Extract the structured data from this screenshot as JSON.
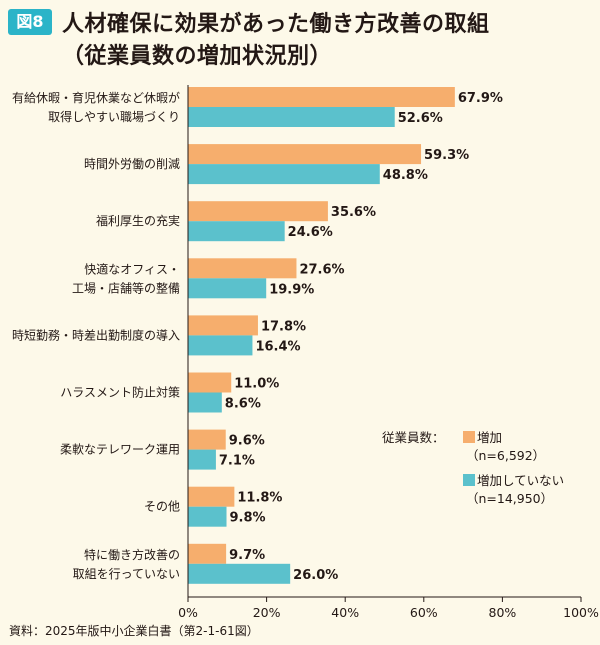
{
  "figure_badge": "図8",
  "title_line1": "人材確保に効果があった働き方改善の取組",
  "title_line2": "（従業員数の増加状況別）",
  "source": "資料：2025年版中小企業白書（第2-1-61図）",
  "legend": {
    "heading": "従業員数：",
    "items": [
      {
        "line1": "増加",
        "line2": "（n=6,592）"
      },
      {
        "line1": "増加していない",
        "line2": "（n=14,950）"
      }
    ]
  },
  "colors": {
    "increase": "#f6ae6d",
    "no_increase": "#5bc1cc",
    "axis": "#231815",
    "background": "#fdf9e9"
  },
  "chart_data": {
    "type": "bar",
    "orientation": "horizontal",
    "categories": [
      [
        "有給休暇・育児休業など休暇が",
        "取得しやすい職場づくり"
      ],
      [
        "時間外労働の削減"
      ],
      [
        "福利厚生の充実"
      ],
      [
        "快適なオフィス・",
        "工場・店舗等の整備"
      ],
      [
        "時短勤務・時差出勤制度の導入"
      ],
      [
        "ハラスメント防止対策"
      ],
      [
        "柔軟なテレワーク運用"
      ],
      [
        "その他"
      ],
      [
        "特に働き方改善の",
        "取組を行っていない"
      ]
    ],
    "series": [
      {
        "name": "増加",
        "values": [
          67.9,
          59.3,
          35.6,
          27.6,
          17.8,
          11.0,
          9.6,
          11.8,
          9.7
        ],
        "labels": [
          "67.9%",
          "59.3%",
          "35.6%",
          "27.6%",
          "17.8%",
          "11.0%",
          "9.6%",
          "11.8%",
          "9.7%"
        ]
      },
      {
        "name": "増加していない",
        "values": [
          52.6,
          48.8,
          24.6,
          19.9,
          16.4,
          8.6,
          7.1,
          9.8,
          26.0
        ],
        "labels": [
          "52.6%",
          "48.8%",
          "24.6%",
          "19.9%",
          "16.4%",
          "8.6%",
          "7.1%",
          "9.8%",
          "26.0%"
        ]
      }
    ],
    "xlim": [
      0,
      100
    ],
    "xticks": [
      "0%",
      "20%",
      "40%",
      "60%",
      "80%",
      "100%"
    ],
    "grid": false,
    "legend_position": "right"
  }
}
